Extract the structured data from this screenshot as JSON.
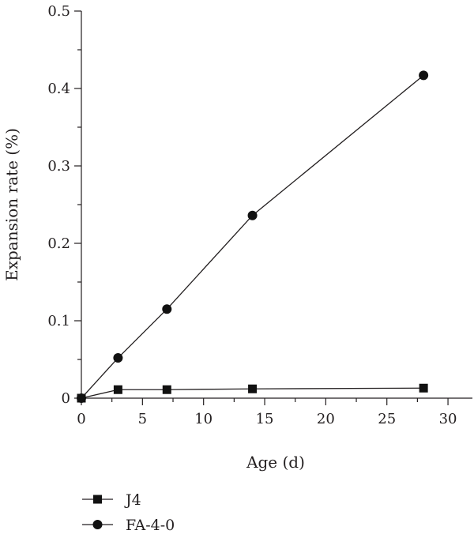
{
  "chart_data": {
    "type": "line",
    "xlabel": "Age (d)",
    "ylabel": "Expansion rate (%)",
    "xlim": [
      0,
      32
    ],
    "ylim": [
      0,
      0.5
    ],
    "xticks": [
      "0",
      "5",
      "10",
      "15",
      "20",
      "25",
      "30"
    ],
    "yticks": [
      "0",
      "0.1",
      "0.2",
      "0.3",
      "0.4",
      "0.5"
    ],
    "grid": false,
    "legend_position": "bottom-left",
    "series": [
      {
        "name": "J4",
        "marker": "square",
        "color": "#111111",
        "x": [
          0,
          3,
          7,
          14,
          28
        ],
        "y": [
          0,
          0.011,
          0.011,
          0.012,
          0.013
        ]
      },
      {
        "name": "FA-4-0",
        "marker": "circle",
        "color": "#111111",
        "x": [
          0,
          3,
          7,
          14,
          28
        ],
        "y": [
          0,
          0.052,
          0.115,
          0.236,
          0.417
        ]
      }
    ]
  }
}
